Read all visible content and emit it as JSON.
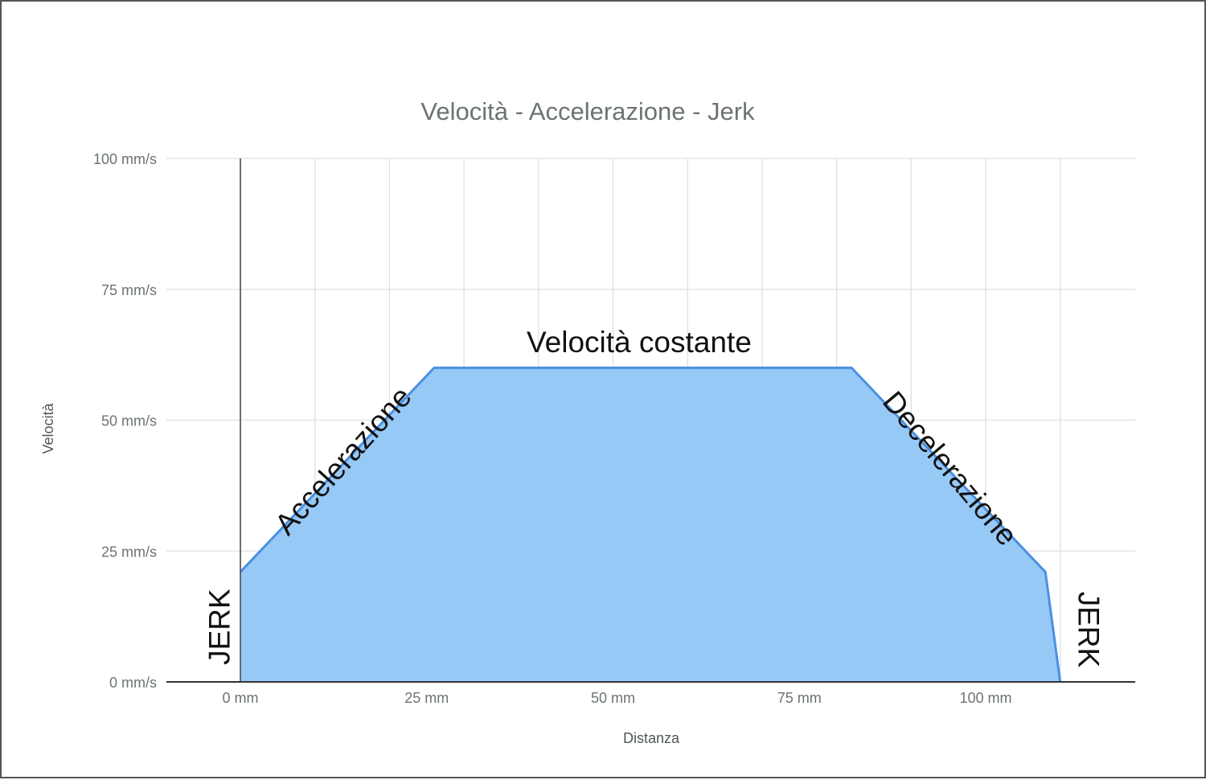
{
  "chart_data": {
    "type": "area",
    "title": "Velocità - Accelerazione - Jerk",
    "xlabel": "Distanza",
    "ylabel": "Velocità",
    "xlim": [
      -20,
      120
    ],
    "ylim": [
      0,
      100
    ],
    "x_ticks": [
      0,
      25,
      50,
      75,
      100
    ],
    "x_tick_labels": [
      "0 mm",
      "25 mm",
      "50 mm",
      "75 mm",
      "100 mm"
    ],
    "y_ticks": [
      0,
      25,
      50,
      75,
      100
    ],
    "y_tick_labels": [
      "0 mm/s",
      "25 mm/s",
      "50 mm/s",
      "75 mm/s",
      "100 mm/s"
    ],
    "grid": true,
    "legend": "none",
    "series": [
      {
        "color": "#4a90e2",
        "fill_color": "#97c9f7",
        "points": [
          {
            "x": 0,
            "y": 0
          },
          {
            "x": 0,
            "y": 21
          },
          {
            "x": 26,
            "y": 60
          },
          {
            "x": 82,
            "y": 60
          },
          {
            "x": 108,
            "y": 21
          },
          {
            "x": 110,
            "y": 0
          }
        ]
      }
    ],
    "annotations": [
      {
        "text": "Velocità costante",
        "x": 53.5,
        "y": 64.5,
        "rotation": 0
      },
      {
        "text": "Accelerazione",
        "x": 14,
        "y": 42,
        "rotation": -48
      },
      {
        "text": "Decelerazione",
        "x": 95,
        "y": 40.5,
        "rotation": 50
      },
      {
        "text": "JERK",
        "x": -2.5,
        "y": 10.5,
        "rotation": -90
      },
      {
        "text": "JERK",
        "x": 113.5,
        "y": 10,
        "rotation": 90
      }
    ]
  }
}
